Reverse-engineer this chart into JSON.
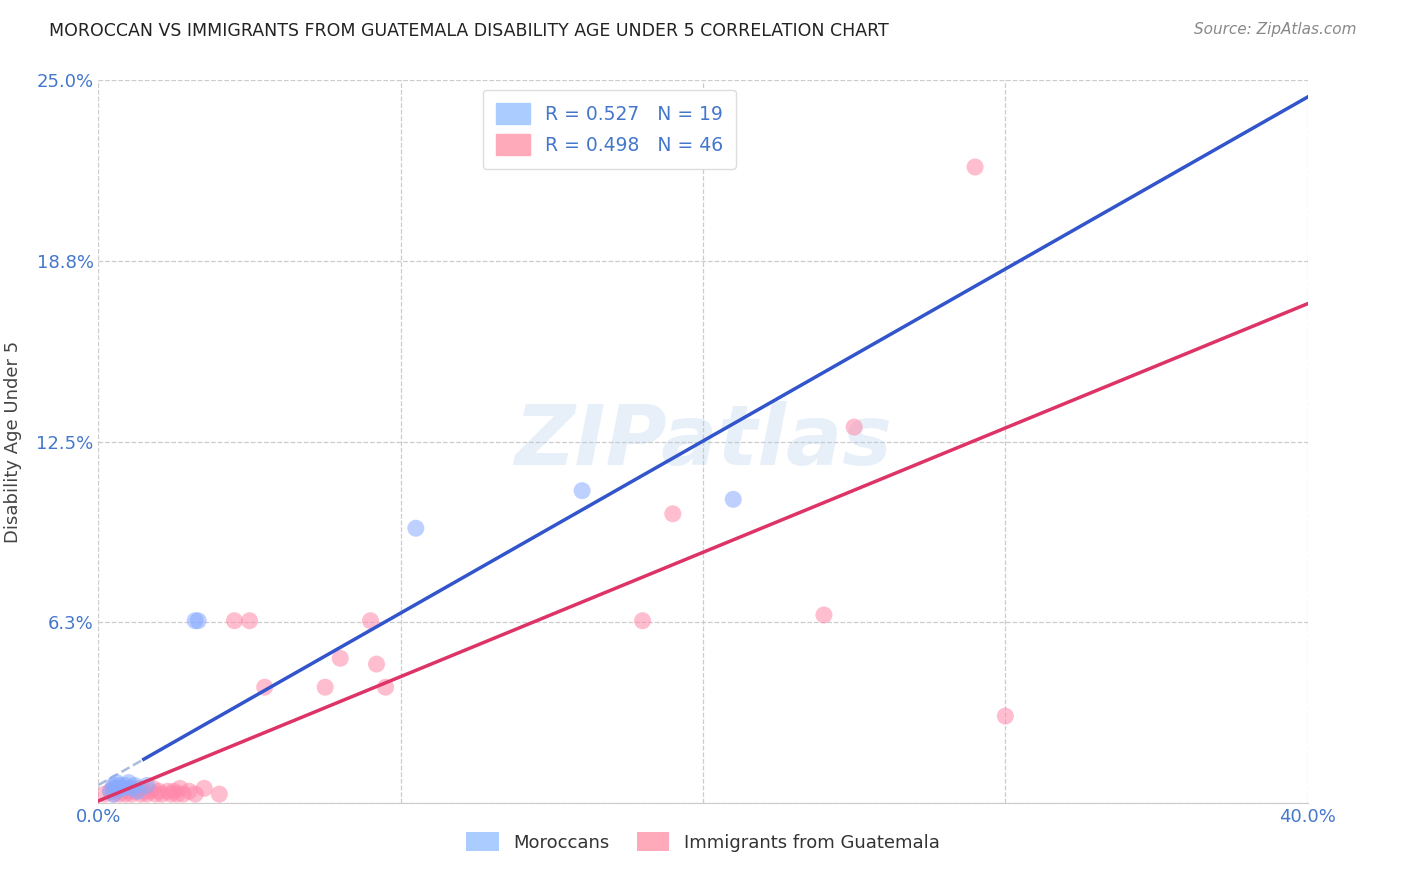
{
  "title": "MOROCCAN VS IMMIGRANTS FROM GUATEMALA DISABILITY AGE UNDER 5 CORRELATION CHART",
  "source": "Source: ZipAtlas.com",
  "ylabel": "Disability Age Under 5",
  "xlim": [
    0.0,
    0.4
  ],
  "ylim": [
    0.0,
    0.25
  ],
  "xticks": [
    0.0,
    0.1,
    0.2,
    0.3,
    0.4
  ],
  "xticklabels": [
    "0.0%",
    "",
    "",
    "",
    "40.0%"
  ],
  "ytick_positions": [
    0.0,
    0.0625,
    0.125,
    0.1875,
    0.25
  ],
  "yticklabels": [
    "",
    "6.3%",
    "12.5%",
    "18.8%",
    "25.0%"
  ],
  "moroccan_color": "#88aaff",
  "guatemalan_color": "#ff88aa",
  "moroccan_line_color": "#3355cc",
  "guatemalan_line_color": "#dd3366",
  "dash_line_color": "#aabbdd",
  "moroccan_R": 0.527,
  "moroccan_N": 19,
  "guatemalan_R": 0.498,
  "guatemalan_N": 46,
  "moroccan_x": [
    0.004,
    0.005,
    0.005,
    0.006,
    0.006,
    0.007,
    0.007,
    0.008,
    0.009,
    0.01,
    0.011,
    0.012,
    0.013,
    0.016,
    0.032,
    0.033,
    0.105,
    0.16,
    0.21
  ],
  "moroccan_y": [
    0.004,
    0.006,
    0.003,
    0.005,
    0.007,
    0.005,
    0.006,
    0.005,
    0.006,
    0.007,
    0.005,
    0.006,
    0.004,
    0.006,
    0.063,
    0.063,
    0.095,
    0.108,
    0.105
  ],
  "guatemalan_x": [
    0.002,
    0.004,
    0.005,
    0.005,
    0.006,
    0.007,
    0.007,
    0.008,
    0.009,
    0.01,
    0.01,
    0.011,
    0.012,
    0.013,
    0.014,
    0.015,
    0.016,
    0.017,
    0.018,
    0.019,
    0.02,
    0.021,
    0.023,
    0.024,
    0.025,
    0.026,
    0.027,
    0.028,
    0.03,
    0.032,
    0.035,
    0.04,
    0.045,
    0.05,
    0.055,
    0.075,
    0.08,
    0.09,
    0.092,
    0.095,
    0.18,
    0.19,
    0.24,
    0.25,
    0.29,
    0.3
  ],
  "guatemalan_y": [
    0.003,
    0.004,
    0.005,
    0.003,
    0.004,
    0.005,
    0.003,
    0.004,
    0.003,
    0.004,
    0.005,
    0.003,
    0.004,
    0.005,
    0.003,
    0.004,
    0.003,
    0.004,
    0.005,
    0.003,
    0.004,
    0.003,
    0.004,
    0.003,
    0.004,
    0.003,
    0.005,
    0.003,
    0.004,
    0.003,
    0.005,
    0.003,
    0.063,
    0.063,
    0.04,
    0.04,
    0.05,
    0.063,
    0.048,
    0.04,
    0.063,
    0.1,
    0.065,
    0.13,
    0.22,
    0.03
  ],
  "watermark": "ZIPatlas",
  "background_color": "#ffffff",
  "grid_color": "#cccccc",
  "tick_color": "#4477cc",
  "title_color": "#222222",
  "source_color": "#888888",
  "ylabel_color": "#444444",
  "legend_label_color": "#4477cc",
  "bottom_legend_label_color": "#333333"
}
